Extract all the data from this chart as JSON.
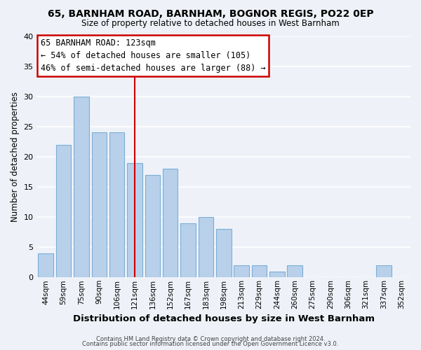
{
  "title1": "65, BARNHAM ROAD, BARNHAM, BOGNOR REGIS, PO22 0EP",
  "title2": "Size of property relative to detached houses in West Barnham",
  "xlabel": "Distribution of detached houses by size in West Barnham",
  "ylabel": "Number of detached properties",
  "bar_color": "#b8d0ea",
  "bar_edge_color": "#7aaed6",
  "background_color": "#eef2f8",
  "grid_color": "#ffffff",
  "categories": [
    "44sqm",
    "59sqm",
    "75sqm",
    "90sqm",
    "106sqm",
    "121sqm",
    "136sqm",
    "152sqm",
    "167sqm",
    "183sqm",
    "198sqm",
    "213sqm",
    "229sqm",
    "244sqm",
    "260sqm",
    "275sqm",
    "290sqm",
    "306sqm",
    "321sqm",
    "337sqm",
    "352sqm"
  ],
  "values": [
    4,
    22,
    30,
    24,
    24,
    19,
    17,
    18,
    9,
    10,
    8,
    2,
    2,
    1,
    2,
    0,
    0,
    0,
    0,
    2,
    0
  ],
  "ylim": [
    0,
    40
  ],
  "yticks": [
    0,
    5,
    10,
    15,
    20,
    25,
    30,
    35,
    40
  ],
  "marker_index": 5,
  "annotation_title": "65 BARNHAM ROAD: 123sqm",
  "annotation_line1": "← 54% of detached houses are smaller (105)",
  "annotation_line2": "46% of semi-detached houses are larger (88) →",
  "annotation_box_color": "#ffffff",
  "annotation_box_edge": "#cc0000",
  "marker_line_color": "#cc0000",
  "footer1": "Contains HM Land Registry data © Crown copyright and database right 2024.",
  "footer2": "Contains public sector information licensed under the Open Government Licence v3.0."
}
